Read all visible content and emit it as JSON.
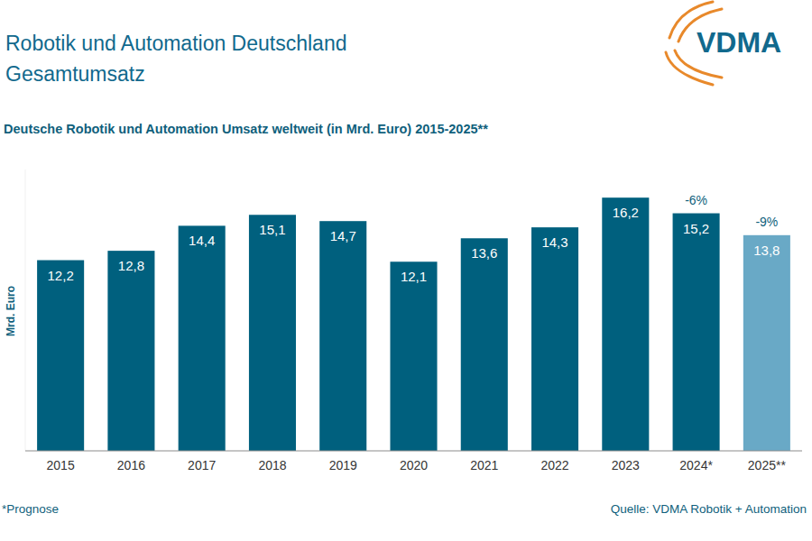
{
  "header": {
    "title": [
      "Robotik und Automation Deutschland",
      "Gesamtumsatz"
    ],
    "logo": "VDMA"
  },
  "chart_data": {
    "type": "bar",
    "title": "Deutsche Robotik und Automation Umsatz weltweit (in Mrd. Euro) 2015-2025**",
    "y_label": "Mrd. Euro",
    "categories": [
      "2015",
      "2016",
      "2017",
      "2018",
      "2019",
      "2020",
      "2021",
      "2022",
      "2023",
      "2024*",
      "2025**"
    ],
    "values": [
      12.2,
      12.8,
      14.4,
      15.1,
      14.7,
      12.1,
      13.6,
      14.3,
      16.2,
      15.2,
      13.8
    ],
    "value_labels": [
      "12,2",
      "12,8",
      "14,4",
      "15,1",
      "14,7",
      "12,1",
      "13,6",
      "14,3",
      "16,2",
      "15,2",
      "13,8"
    ],
    "colors": [
      "#00607e",
      "#00607e",
      "#00607e",
      "#00607e",
      "#00607e",
      "#00607e",
      "#00607e",
      "#00607e",
      "#00607e",
      "#00607e",
      "#69a9c6"
    ],
    "ylim": [
      0,
      18
    ],
    "yticks": [],
    "grid": false,
    "data_labels": true,
    "tick_labels": "x",
    "annotations": [
      {
        "text": "-6%",
        "category": "2024*"
      },
      {
        "text": "-9%",
        "category": "2025**"
      }
    ]
  },
  "footer": {
    "note": "*Prognose",
    "source": "Quelle: VDMA Robotik + Automation"
  }
}
